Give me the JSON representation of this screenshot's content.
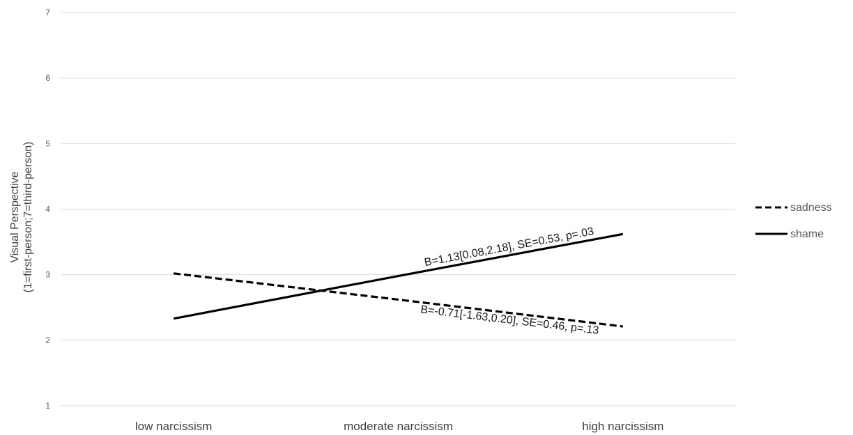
{
  "chart_data": {
    "type": "line",
    "categories": [
      "low narcissism",
      "moderate narcissism",
      "high narcissism"
    ],
    "ylabel": "Visual Perspective",
    "ylabel_sub": "(1=first-person;7=third-person)",
    "ylim": [
      1,
      7
    ],
    "yticks": [
      1,
      2,
      3,
      4,
      5,
      6,
      7
    ],
    "grid": true,
    "legend_position": "right",
    "series": [
      {
        "name": "sadness",
        "values": [
          3.02,
          2.62,
          2.21
        ],
        "color": "#000000",
        "dash": "dashed"
      },
      {
        "name": "shame",
        "values": [
          2.33,
          2.98,
          3.62
        ],
        "color": "#000000",
        "dash": "solid"
      }
    ],
    "annotations": [
      {
        "series": "shame",
        "text": "B=1.13[0.08,2.18], SE=0.53, p=.03"
      },
      {
        "series": "sadness",
        "text": "B=-0.71[-1.63,0.20], SE=0.46, p=.13"
      }
    ]
  }
}
